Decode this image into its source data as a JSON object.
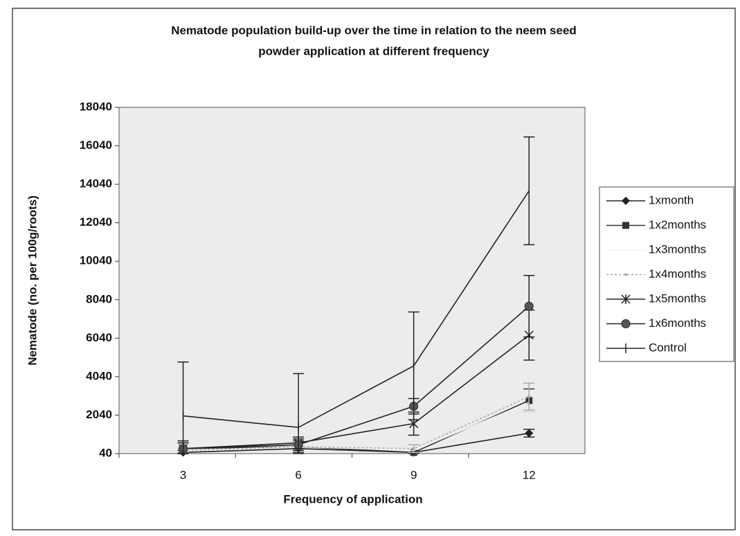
{
  "chart_data": {
    "type": "line",
    "title": [
      "Nematode population build-up over the time in relation to the neem seed",
      "powder application at different frequency"
    ],
    "x_label": "Frequency of application",
    "y_label": "Nematode (no. per 100g/roots)",
    "categories": [
      "3",
      "6",
      "9",
      "12"
    ],
    "ylim": [
      40,
      18040
    ],
    "yticks": [
      40,
      2040,
      4040,
      6040,
      8040,
      10040,
      12040,
      14040,
      16040,
      18040
    ],
    "legend": "right",
    "series": [
      {
        "name": "1xmonth",
        "color": "#222222",
        "marker": "diamond",
        "values": [
          100,
          300,
          100,
          1100
        ],
        "errors": [
          100,
          100,
          100,
          200
        ]
      },
      {
        "name": "1x2months",
        "color": "#333333",
        "marker": "square",
        "values": [
          300,
          400,
          100,
          2800
        ],
        "errors": [
          300,
          300,
          200,
          600
        ]
      },
      {
        "name": "1x3months",
        "color": "#f2f2f2",
        "marker": "none",
        "values": [
          200,
          400,
          200,
          2700
        ],
        "errors": [
          100,
          200,
          100,
          500
        ]
      },
      {
        "name": "1x4months",
        "color": "#aaaaaa",
        "marker": "dot",
        "values": [
          200,
          400,
          300,
          3000
        ],
        "errors": [
          100,
          200,
          200,
          700
        ]
      },
      {
        "name": "1x5months",
        "color": "#222222",
        "marker": "star",
        "values": [
          300,
          600,
          1600,
          6200
        ],
        "errors": [
          300,
          300,
          600,
          1300
        ]
      },
      {
        "name": "1x6months",
        "color": "#222222",
        "marker": "circle",
        "values": [
          300,
          500,
          2500,
          7700
        ],
        "errors": [
          400,
          300,
          400,
          1600
        ]
      },
      {
        "name": "Control",
        "color": "#222222",
        "marker": "plus",
        "values": [
          2000,
          1400,
          4600,
          13700
        ],
        "errors": [
          2800,
          2800,
          2800,
          2800
        ]
      }
    ]
  }
}
